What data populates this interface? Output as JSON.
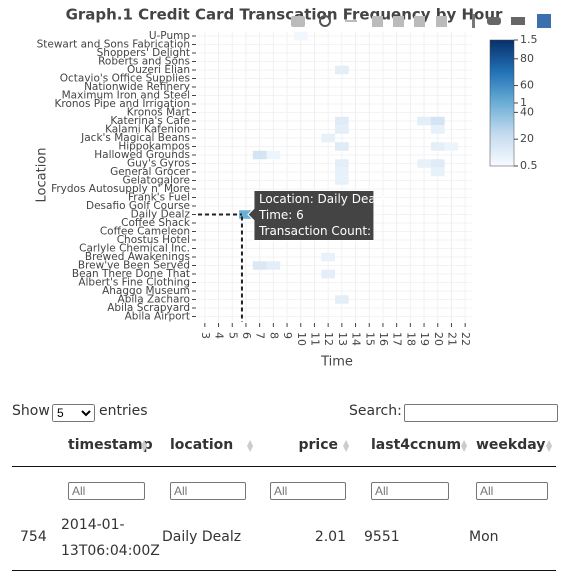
{
  "chart_data": {
    "type": "heatmap",
    "title": "Graph.1 Credit Card Transcation Frequency by Hour",
    "xlabel": "Time",
    "ylabel": "Location",
    "categories": [
      "U-Pump",
      "Stewart and Sons Fabrication",
      "Shoppers' Delight",
      "Roberts and Sons",
      "Ouzeri Elian",
      "Octavio's Office Supplies",
      "Nationwide Refinery",
      "Maximum Iron and Steel",
      "Kronos Pipe and Irrigation",
      "Kronos Mart",
      "Katerina's Cafe",
      "Kalami Kafenion",
      "Jack's Magical Beans",
      "Hippokampos",
      "Hallowed Grounds",
      "Guy's Gyros",
      "General Grocer",
      "Gelatogalore",
      "Frydos Autosupply n' More",
      "Frank's Fuel",
      "Desafio Golf Course",
      "Daily Dealz",
      "Coffee Shack",
      "Coffee Cameleon",
      "Chostus Hotel",
      "Carlyle Chemical Inc.",
      "Brewed Awakenings",
      "Brew've Been Served",
      "Bean There Done That",
      "Albert's Fine Clothing",
      "Ahaggo Museum",
      "Abila Zacharo",
      "Abila Scrapyard",
      "Abila Airport"
    ],
    "xlim": [
      2.5,
      22.5
    ],
    "xticks": [
      3,
      4,
      5,
      6,
      7,
      8,
      9,
      10,
      11,
      12,
      13,
      14,
      15,
      16,
      17,
      18,
      19,
      20,
      21,
      22
    ],
    "cells": [
      {
        "location": "U-Pump",
        "x": 10,
        "z": 0.53
      },
      {
        "location": "Ouzeri Elian",
        "x": 13,
        "z": 0.6
      },
      {
        "location": "Katerina's Cafe",
        "x": 13,
        "z": 0.62
      },
      {
        "location": "Katerina's Cafe",
        "x": 19,
        "z": 0.6
      },
      {
        "location": "Katerina's Cafe",
        "x": 20,
        "z": 0.68
      },
      {
        "location": "Kalami Kafenion",
        "x": 13,
        "z": 0.6
      },
      {
        "location": "Kalami Kafenion",
        "x": 20,
        "z": 0.58
      },
      {
        "location": "Jack's Magical Beans",
        "x": 12,
        "z": 0.58
      },
      {
        "location": "Hippokampos",
        "x": 13,
        "z": 0.62
      },
      {
        "location": "Hippokampos",
        "x": 20,
        "z": 0.6
      },
      {
        "location": "Hippokampos",
        "x": 21,
        "z": 0.55
      },
      {
        "location": "Hallowed Grounds",
        "x": 7,
        "z": 0.68
      },
      {
        "location": "Hallowed Grounds",
        "x": 8,
        "z": 0.55
      },
      {
        "location": "Guy's Gyros",
        "x": 13,
        "z": 0.6
      },
      {
        "location": "Guy's Gyros",
        "x": 19,
        "z": 0.58
      },
      {
        "location": "Guy's Gyros",
        "x": 20,
        "z": 0.62
      },
      {
        "location": "General Grocer",
        "x": 13,
        "z": 0.58
      },
      {
        "location": "General Grocer",
        "x": 20,
        "z": 0.58
      },
      {
        "location": "Gelatogalore",
        "x": 13,
        "z": 0.58
      },
      {
        "location": "Daily Dealz",
        "x": 6,
        "z": 1
      },
      {
        "location": "Brewed Awakenings",
        "x": 12,
        "z": 0.57
      },
      {
        "location": "Brew've Been Served",
        "x": 7,
        "z": 0.65
      },
      {
        "location": "Brew've Been Served",
        "x": 8,
        "z": 0.6
      },
      {
        "location": "Bean There Done That",
        "x": 12,
        "z": 0.6
      },
      {
        "location": "Abila Zacharo",
        "x": 13,
        "z": 0.6
      }
    ],
    "colorscale": [
      "#f7fbff",
      "#c6dbef",
      "#6baed6",
      "#2171b5",
      "#08306b"
    ],
    "colorbars": [
      {
        "range": [
          0.5,
          1.5
        ],
        "ticks": [
          0.5,
          1,
          1.5
        ]
      },
      {
        "range": [
          0,
          94
        ],
        "ticks": [
          20,
          40,
          60,
          80
        ]
      }
    ],
    "hover": {
      "location": "Daily Dealz",
      "x": 6,
      "lines": [
        "Location: Daily Dealz",
        "Time: 6",
        "Transaction Count: 1"
      ]
    }
  },
  "table": {
    "length_label": "Show",
    "length_value": "5",
    "length_suffix": "entries",
    "search_label": "Search:",
    "columns": [
      "timestamp",
      "location",
      "price",
      "last4ccnum",
      "weekday"
    ],
    "filter_placeholder": "All",
    "rows": [
      {
        "index": 754,
        "cells": [
          "2014-01-13T06:04:00Z",
          "Daily Dealz",
          2.01,
          9551,
          "Mon"
        ]
      }
    ]
  }
}
